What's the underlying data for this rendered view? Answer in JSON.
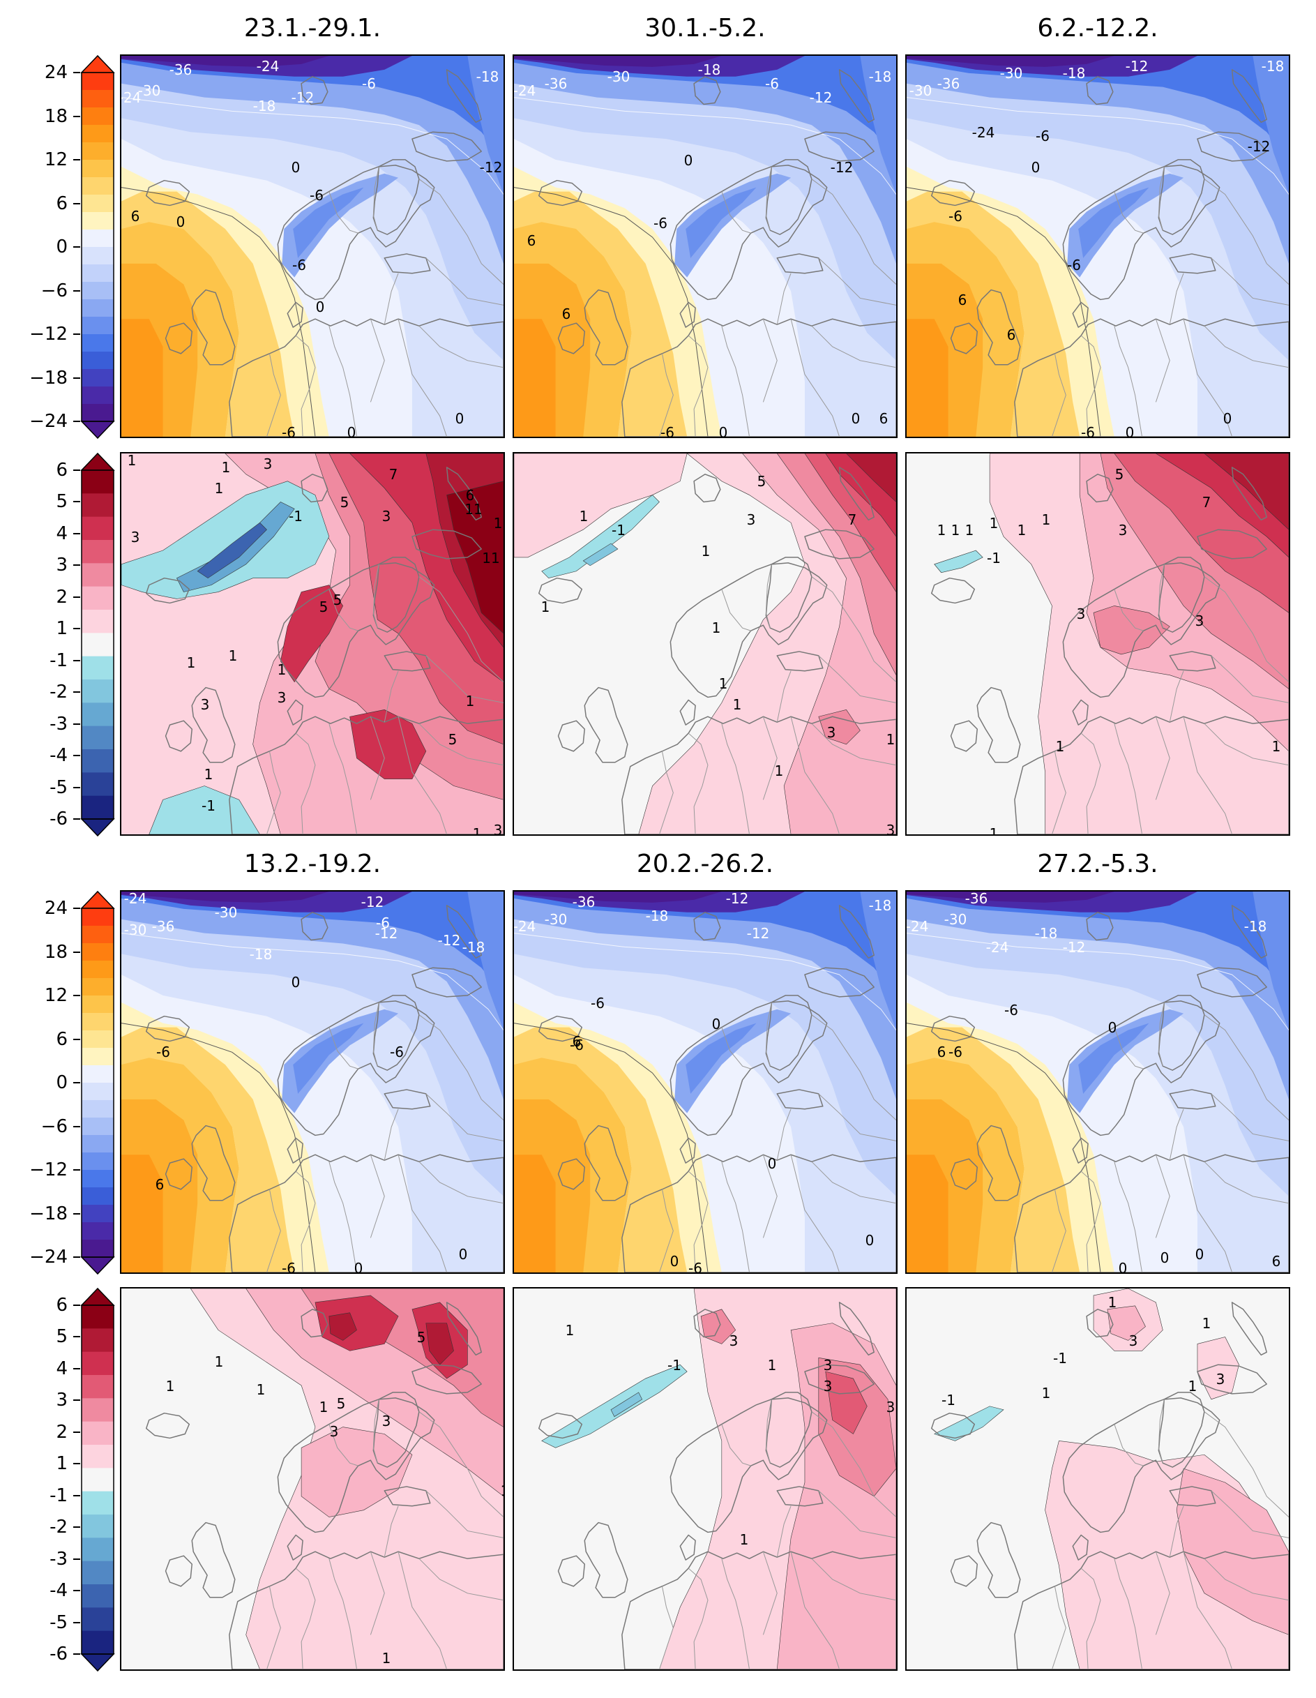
{
  "titles": [
    "23.1.-29.1.",
    "30.1.-5.2.",
    "6.2.-12.2.",
    "13.2.-19.2.",
    "20.2.-26.2.",
    "27.2.-5.3."
  ],
  "temp_colorbar": {
    "ticks": [
      "24",
      "18",
      "12",
      "6",
      "0",
      "−6",
      "−12",
      "−18",
      "−24"
    ],
    "colors": [
      "#fe3d10",
      "#fe6010",
      "#fe7f10",
      "#fe9a18",
      "#fdae2c",
      "#fdc44a",
      "#fed56e",
      "#fee592",
      "#fff4c0",
      "#eef2fe",
      "#d8e2fc",
      "#c2d2fa",
      "#a8bff6",
      "#8aa8f2",
      "#6a90ee",
      "#4a78ea",
      "#3a5ed8",
      "#4242c0",
      "#4a2aa8",
      "#4a1a90"
    ]
  },
  "anom_colorbar": {
    "ticks": [
      "6",
      "5",
      "4",
      "3",
      "2",
      "1",
      "-1",
      "-2",
      "-3",
      "-4",
      "-5",
      "-6"
    ],
    "colors": [
      "#8b0015",
      "#b01a35",
      "#cf3050",
      "#e25a75",
      "#ef8aa0",
      "#f9b4c6",
      "#fdd4df",
      "#f6f6f6",
      "#9fe0e8",
      "#82c6de",
      "#66a8d2",
      "#5288c4",
      "#3c64b0",
      "#2a4298",
      "#1a2480"
    ]
  },
  "temp_labels": {
    "p1": [
      "-24",
      "-30",
      "-36",
      "-24",
      "-18",
      "-12",
      "-6",
      "0",
      "6",
      "0",
      "-6",
      "-6",
      "0",
      "-6",
      "0",
      "0",
      "-18",
      "-12"
    ],
    "p2": [
      "-24",
      "-36",
      "-30",
      "-18",
      "-6",
      "-12",
      "-12",
      "0",
      "6",
      "-6",
      "6",
      "-6",
      "0",
      "0",
      "6",
      "-18"
    ],
    "p3": [
      "-30",
      "-36",
      "-30",
      "-24",
      "-18",
      "-12",
      "-6",
      "0",
      "-6",
      "-6",
      "6",
      "6",
      "-6",
      "0",
      "0",
      "-18",
      "-12"
    ],
    "p4": [
      "-24",
      "-30",
      "-36",
      "-30",
      "-12",
      "-18",
      "-12",
      "-6",
      "0",
      "-6",
      "-6",
      "6",
      "0",
      "-6",
      "0",
      "-18",
      "-12"
    ],
    "p5": [
      "-24",
      "-30",
      "-36",
      "-18",
      "-12",
      "-12",
      "-6",
      "-6",
      "0",
      "6",
      "0",
      "-6",
      "0",
      "0",
      "-18"
    ],
    "p6": [
      "-24",
      "-30",
      "-36",
      "-24",
      "-18",
      "-12",
      "-6",
      "0",
      "-6",
      "6",
      "0",
      "0",
      "0",
      "6",
      "-18"
    ]
  },
  "anom_labels": {
    "p1": [
      "1",
      "1",
      "3",
      "1",
      "-1",
      "7",
      "5",
      "3",
      "6",
      "11",
      "11",
      "1",
      "3",
      "1",
      "5",
      "5",
      "1",
      "3",
      "3",
      "1",
      "5",
      "1",
      "-1",
      "1",
      "1",
      "3"
    ],
    "p2": [
      "1",
      "-1",
      "1",
      "5",
      "3",
      "7",
      "1",
      "1",
      "1",
      "1",
      "1",
      "3",
      "1",
      "3"
    ],
    "p3": [
      "1",
      "1",
      "1",
      "-1",
      "1",
      "5",
      "3",
      "7",
      "1",
      "3",
      "3",
      "1",
      "1",
      "1",
      "1"
    ],
    "p4": [
      "1",
      "1",
      "1",
      "5",
      "5",
      "3",
      "1",
      "3",
      "1",
      "1"
    ],
    "p5": [
      "1",
      "-1",
      "3",
      "1",
      "3",
      "3",
      "3",
      "1"
    ],
    "p6": [
      "1",
      "-1",
      "3",
      "1",
      "-1",
      "1",
      "3",
      "1"
    ]
  }
}
